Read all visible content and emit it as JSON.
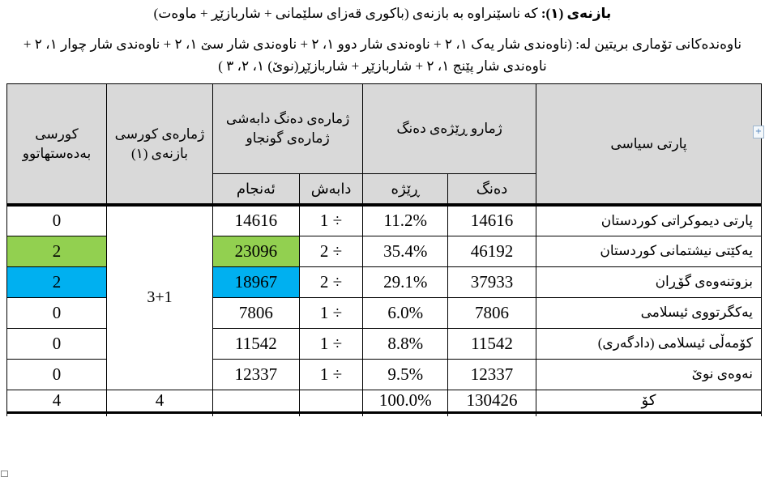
{
  "intro": {
    "line1_bold": "بازنەی (١):",
    "line1_rest": " کە ناسێنراوە بە بازنەی (باکوری قەزای سلێمانی + شاربازێڕ + ماوەت)",
    "line2": "ناوەندەکانی تۆماری بریتین لە: (ناوەندی شار یەک ١، ٢ + ناوەندی شار دوو ١، ٢ + ناوەندی شار سێ ١، ٢ + ناوەندی شار چوار ١، ٢ + ناوەندی شار پێنج ١، ٢ + شاربازێڕ + شاربازێڕ(نوێ) ١، ٢، ٣ )"
  },
  "table": {
    "headers": {
      "party": "پارتی سیاسی",
      "votes_group": "ژمارو ڕێژەی دەنگ",
      "votes": "دەنگ",
      "percent": "ڕێژە",
      "division_group": "ژمارەی دەنگ دابەشی ژمارەی گونجاو",
      "divider": "دابەش",
      "result": "ئەنجام",
      "circle_seats": "ژمارەی کورسی بازنەی (١)",
      "seats_won": "کورسی بەدەستهاتوو"
    },
    "circle_seats_value": "3+1",
    "rows": [
      {
        "party": "پارتی دیموکراتی کوردستان",
        "votes": "14616",
        "percent": "11.2%",
        "divider": "1 ÷",
        "result": "14616",
        "seats": "0",
        "highlight": ""
      },
      {
        "party": "یەکێتی نیشتمانی کوردستان",
        "votes": "46192",
        "percent": "35.4%",
        "divider": "2 ÷",
        "result": "23096",
        "seats": "2",
        "highlight": "green"
      },
      {
        "party": "بزوتنەوەی گۆڕان",
        "votes": "37933",
        "percent": "29.1%",
        "divider": "2 ÷",
        "result": "18967",
        "seats": "2",
        "highlight": "blue"
      },
      {
        "party": "یەکگرتووی ئیسلامی",
        "votes": "7806",
        "percent": "6.0%",
        "divider": "1 ÷",
        "result": "7806",
        "seats": "0",
        "highlight": ""
      },
      {
        "party": "کۆمەڵی ئیسلامی (دادگەری)",
        "votes": "11542",
        "percent": "8.8%",
        "divider": "1 ÷",
        "result": "11542",
        "seats": "0",
        "highlight": ""
      },
      {
        "party": "نەوەی نوێ",
        "votes": "12337",
        "percent": "9.5%",
        "divider": "1 ÷",
        "result": "12337",
        "seats": "0",
        "highlight": ""
      }
    ],
    "total": {
      "party": "کۆ",
      "votes": "130426",
      "percent": "100.0%",
      "divider": "",
      "result": "",
      "circle_seats": "4",
      "seats": "4"
    }
  },
  "artifacts": {
    "corner_plus": "+"
  },
  "colors": {
    "header_bg": "#d9d9d9",
    "highlight_green": "#92d050",
    "highlight_blue": "#00b0f0"
  }
}
